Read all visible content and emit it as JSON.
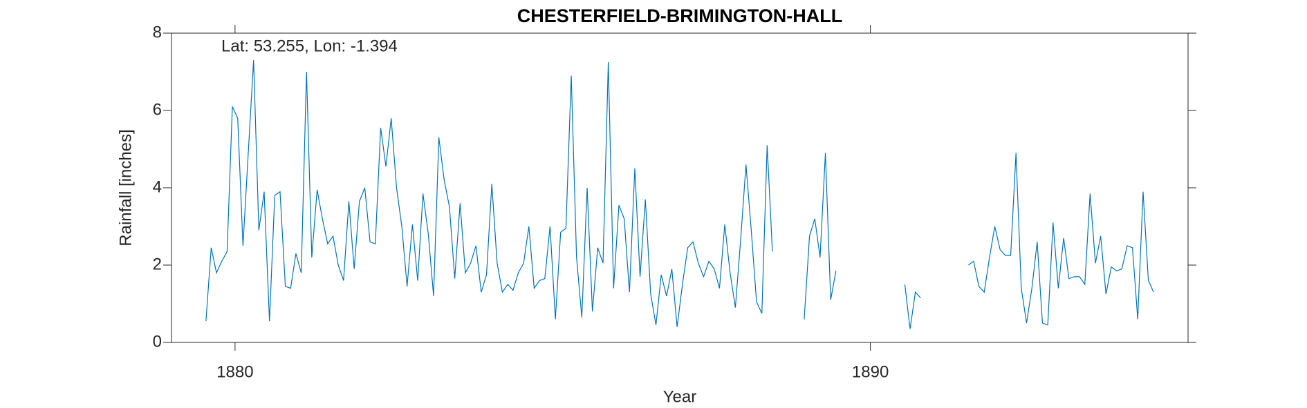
{
  "chart_data": {
    "type": "line",
    "title": "CHESTERFIELD-BRIMINGTON-HALL",
    "annotation": "Lat: 53.255, Lon: -1.394",
    "x_label": "Year",
    "y_label": "Rainfall [inches]",
    "xlim": [
      1879,
      1895
    ],
    "xticks": [
      1880,
      1890
    ],
    "ylim": [
      0,
      8
    ],
    "yticks": [
      0,
      2,
      4,
      6,
      8
    ],
    "x": [
      1879.542,
      1879.625,
      1879.708,
      1879.792,
      1879.875,
      1879.958,
      1880.042,
      1880.125,
      1880.208,
      1880.292,
      1880.375,
      1880.458,
      1880.542,
      1880.625,
      1880.708,
      1880.792,
      1880.875,
      1880.958,
      1881.042,
      1881.125,
      1881.208,
      1881.292,
      1881.375,
      1881.458,
      1881.542,
      1881.625,
      1881.708,
      1881.792,
      1881.875,
      1881.958,
      1882.042,
      1882.125,
      1882.208,
      1882.292,
      1882.375,
      1882.458,
      1882.542,
      1882.625,
      1882.708,
      1882.792,
      1882.875,
      1882.958,
      1883.042,
      1883.125,
      1883.208,
      1883.292,
      1883.375,
      1883.458,
      1883.542,
      1883.625,
      1883.708,
      1883.792,
      1883.875,
      1883.958,
      1884.042,
      1884.125,
      1884.208,
      1884.292,
      1884.375,
      1884.458,
      1884.542,
      1884.625,
      1884.708,
      1884.792,
      1884.875,
      1884.958,
      1885.042,
      1885.125,
      1885.208,
      1885.292,
      1885.375,
      1885.458,
      1885.542,
      1885.625,
      1885.708,
      1885.792,
      1885.875,
      1885.958,
      1886.042,
      1886.125,
      1886.208,
      1886.292,
      1886.375,
      1886.458,
      1886.542,
      1886.625,
      1886.708,
      1886.792,
      1886.875,
      1886.958,
      1887.042,
      1887.125,
      1887.208,
      1887.292,
      1887.375,
      1887.458,
      1887.542,
      1887.625,
      1887.708,
      1887.792,
      1887.875,
      1887.958,
      1888.042,
      1888.125,
      1888.208,
      1888.292,
      1888.375,
      1888.458,
      1888.542,
      1888.625,
      1888.708,
      1888.792,
      1888.875,
      1888.958,
      1889.042,
      1889.125,
      1889.208,
      1889.292,
      1889.375,
      1889.458,
      1889.542,
      1889.625,
      1889.708,
      1889.792,
      1889.875,
      1889.958,
      1890.042,
      1890.125,
      1890.208,
      1890.292,
      1890.375,
      1890.458,
      1890.542,
      1890.625,
      1890.708,
      1890.792,
      1890.875,
      1890.958,
      1891.042,
      1891.125,
      1891.208,
      1891.292,
      1891.375,
      1891.458,
      1891.542,
      1891.625,
      1891.708,
      1891.792,
      1891.875,
      1891.958,
      1892.042,
      1892.125,
      1892.208,
      1892.292,
      1892.375,
      1892.458,
      1892.542,
      1892.625,
      1892.708,
      1892.792,
      1892.875,
      1892.958,
      1893.042,
      1893.125,
      1893.208,
      1893.292,
      1893.375,
      1893.458,
      1893.542,
      1893.625,
      1893.708,
      1893.792,
      1893.875,
      1893.958,
      1894.042,
      1894.125,
      1894.208,
      1894.292,
      1894.375,
      1894.458
    ],
    "series": [
      {
        "name": "Rainfall",
        "color": "#0072bd",
        "values": [
          0.55,
          2.45,
          1.8,
          2.1,
          2.35,
          6.1,
          5.8,
          2.5,
          4.9,
          7.3,
          2.9,
          3.9,
          0.55,
          3.8,
          3.9,
          1.45,
          1.4,
          2.3,
          1.8,
          7.0,
          2.2,
          3.95,
          3.2,
          2.55,
          2.75,
          2.0,
          1.6,
          3.65,
          1.9,
          3.65,
          4.0,
          2.6,
          2.55,
          5.55,
          4.55,
          5.8,
          4.0,
          3.0,
          1.45,
          3.05,
          1.6,
          3.85,
          2.8,
          1.2,
          5.3,
          4.2,
          3.5,
          1.65,
          3.6,
          1.8,
          2.05,
          2.5,
          1.3,
          1.75,
          4.1,
          2.05,
          1.3,
          1.5,
          1.35,
          1.8,
          2.05,
          3.0,
          1.4,
          1.6,
          1.65,
          3.0,
          0.6,
          2.85,
          2.95,
          6.9,
          2.2,
          0.65,
          4.0,
          0.8,
          2.45,
          2.05,
          7.25,
          1.4,
          3.55,
          3.2,
          1.3,
          4.5,
          1.7,
          3.7,
          1.25,
          0.45,
          1.75,
          1.2,
          1.9,
          0.4,
          1.5,
          2.45,
          2.6,
          2.05,
          1.7,
          2.1,
          1.9,
          1.4,
          3.05,
          1.8,
          0.9,
          2.65,
          4.6,
          2.9,
          1.05,
          0.75,
          5.1,
          2.35,
          null,
          null,
          null,
          null,
          null,
          0.6,
          2.75,
          3.2,
          2.2,
          4.9,
          1.1,
          1.85,
          null,
          null,
          null,
          null,
          null,
          null,
          null,
          null,
          null,
          null,
          null,
          null,
          1.5,
          0.35,
          1.3,
          1.15,
          null,
          null,
          null,
          null,
          null,
          null,
          null,
          null,
          2.0,
          2.1,
          1.45,
          1.3,
          2.2,
          3.0,
          2.4,
          2.25,
          2.25,
          4.9,
          1.4,
          0.5,
          1.4,
          2.6,
          0.5,
          0.45,
          3.1,
          1.4,
          2.7,
          1.65,
          1.7,
          1.7,
          1.5,
          3.85,
          2.05,
          2.75,
          1.25,
          1.95,
          1.85,
          1.9,
          2.5,
          2.45,
          0.6,
          3.9,
          1.6,
          1.3
        ]
      }
    ]
  }
}
